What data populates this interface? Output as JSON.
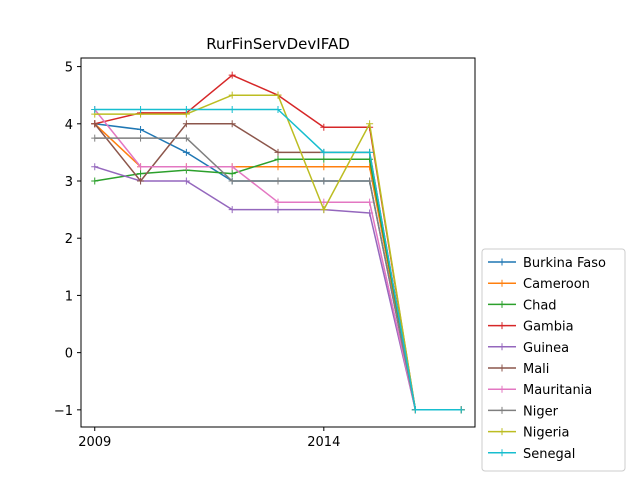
{
  "chart_data": {
    "type": "line",
    "title": "RurFinServDevIFAD",
    "xlabel": "",
    "ylabel": "",
    "x": [
      2009,
      2010,
      2011,
      2012,
      2013,
      2014,
      2015,
      2016,
      2017
    ],
    "xlim": [
      2008.7,
      2017.3
    ],
    "ylim": [
      -1.3,
      5.15
    ],
    "x_ticks": [
      2009,
      2014
    ],
    "x_tick_labels": [
      "2009",
      "2014"
    ],
    "y_ticks": [
      -1,
      0,
      1,
      2,
      3,
      4,
      5
    ],
    "y_tick_labels": [
      "−1",
      "0",
      "1",
      "2",
      "3",
      "4",
      "5"
    ],
    "grid": false,
    "legend_position": "lower-right-outside",
    "series": [
      {
        "name": "Burkina Faso",
        "color": "#1f77b4",
        "values": [
          4.0,
          3.9,
          3.5,
          3.0,
          3.0,
          3.0,
          3.0,
          -1.0,
          -1.0
        ]
      },
      {
        "name": "Cameroon",
        "color": "#ff7f0e",
        "values": [
          4.0,
          3.25,
          3.25,
          3.25,
          3.25,
          3.25,
          3.25,
          -1.0,
          -1.0
        ]
      },
      {
        "name": "Chad",
        "color": "#2ca02c",
        "values": [
          3.0,
          3.13,
          3.19,
          3.13,
          3.38,
          3.38,
          3.38,
          -1.0,
          -1.0
        ]
      },
      {
        "name": "Gambia",
        "color": "#d62728",
        "values": [
          4.0,
          4.19,
          4.19,
          4.85,
          4.5,
          3.94,
          3.94,
          -1.0,
          -1.0
        ]
      },
      {
        "name": "Guinea",
        "color": "#9467bd",
        "values": [
          3.25,
          3.0,
          3.0,
          2.5,
          2.5,
          2.5,
          2.44,
          -1.0,
          -1.0
        ]
      },
      {
        "name": "Mali",
        "color": "#8c564b",
        "values": [
          4.0,
          3.0,
          4.0,
          4.0,
          3.5,
          3.5,
          3.5,
          -1.0,
          -1.0
        ]
      },
      {
        "name": "Mauritania",
        "color": "#e377c2",
        "values": [
          4.25,
          3.25,
          3.25,
          3.25,
          2.63,
          2.63,
          2.63,
          -1.0,
          -1.0
        ]
      },
      {
        "name": "Niger",
        "color": "#7f7f7f",
        "values": [
          3.75,
          3.75,
          3.75,
          3.0,
          3.0,
          3.0,
          3.0,
          -1.0,
          -1.0
        ]
      },
      {
        "name": "Nigeria",
        "color": "#bcbd22",
        "values": [
          4.17,
          4.17,
          4.17,
          4.5,
          4.5,
          2.5,
          4.0,
          -1.0,
          -1.0
        ]
      },
      {
        "name": "Senegal",
        "color": "#17becf",
        "values": [
          4.25,
          4.25,
          4.25,
          4.25,
          4.25,
          3.5,
          3.5,
          -1.0,
          -1.0
        ]
      }
    ]
  }
}
